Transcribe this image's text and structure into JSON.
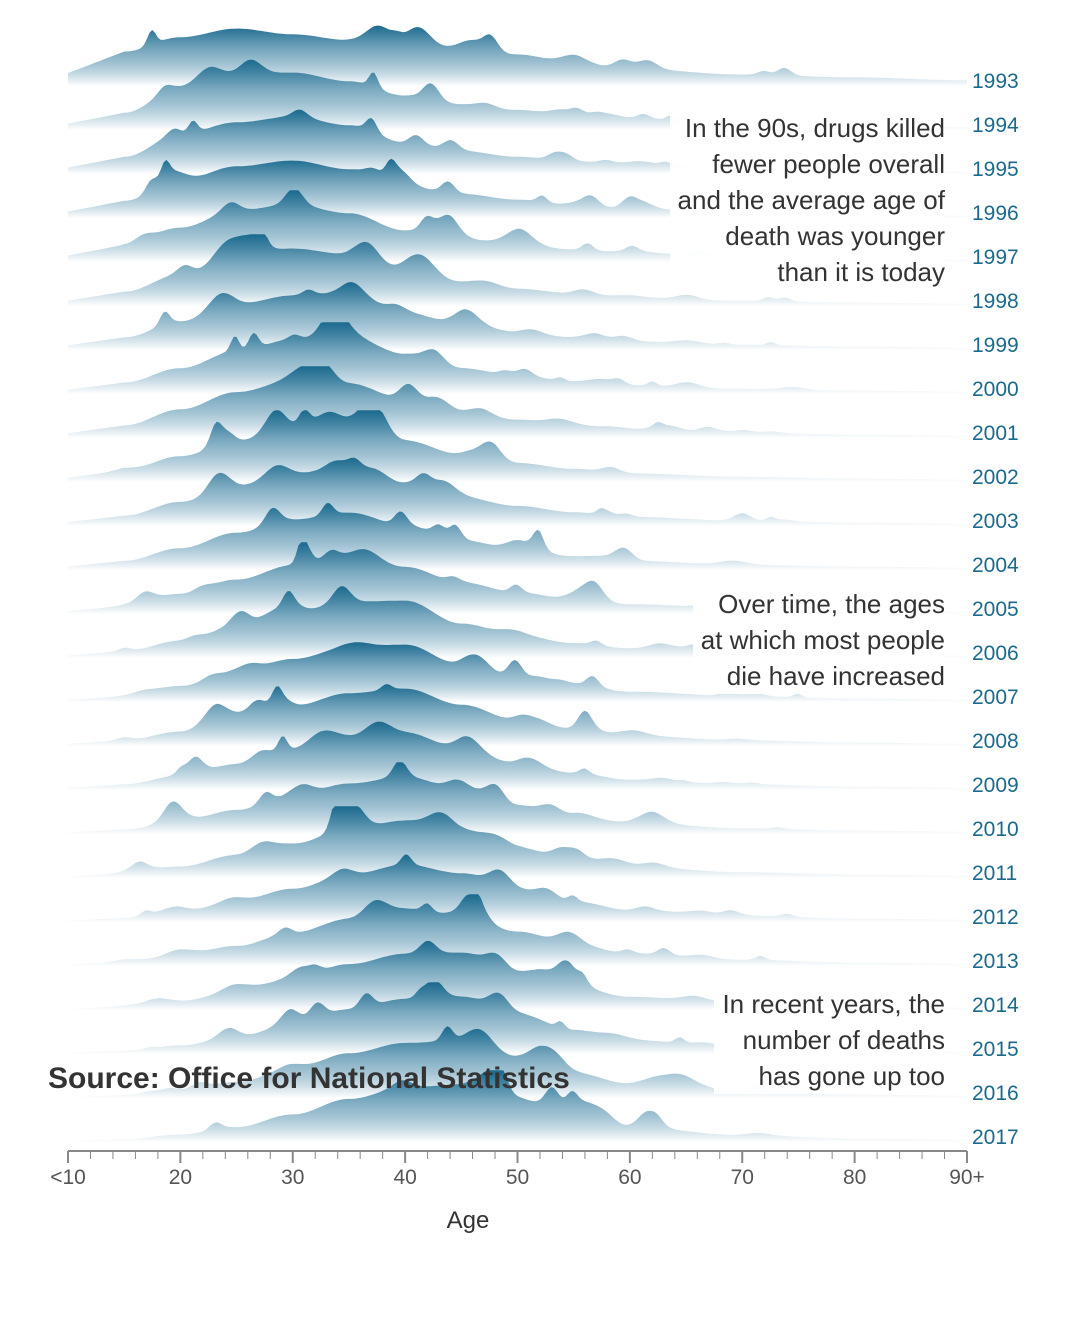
{
  "chart_data": {
    "type": "area",
    "subtype": "ridgeline",
    "xlabel": "Age",
    "x_ticks": [
      "<10",
      "20",
      "30",
      "40",
      "50",
      "60",
      "70",
      "80",
      "90+"
    ],
    "xlim": [
      10,
      90
    ],
    "series": [
      {
        "name": "1993",
        "peak_age": 27,
        "spread": 10,
        "x": [
          15,
          20,
          25,
          30,
          35,
          40,
          45,
          50,
          55,
          60,
          70,
          80,
          90
        ],
        "values": [
          0.6,
          0.85,
          1.0,
          0.9,
          0.8,
          0.72,
          0.65,
          0.55,
          0.4,
          0.3,
          0.2,
          0.15,
          0.1
        ]
      },
      {
        "name": "1994",
        "peak_age": 28,
        "spread": 10,
        "x": [
          15,
          20,
          25,
          30,
          35,
          40,
          45,
          50,
          55,
          60,
          70,
          80,
          90
        ],
        "values": [
          0.3,
          0.75,
          0.95,
          1.0,
          0.85,
          0.6,
          0.45,
          0.35,
          0.25,
          0.2,
          0.12,
          0.08,
          0.05
        ]
      },
      {
        "name": "1995",
        "peak_age": 28,
        "spread": 9,
        "x": [
          15,
          20,
          25,
          30,
          35,
          40,
          45,
          50,
          55,
          60,
          70,
          80,
          90
        ],
        "values": [
          0.3,
          0.7,
          0.9,
          1.0,
          0.85,
          0.55,
          0.4,
          0.3,
          0.22,
          0.18,
          0.1,
          0.07,
          0.04
        ]
      },
      {
        "name": "1996",
        "peak_age": 29,
        "spread": 9,
        "x": [
          15,
          20,
          25,
          30,
          35,
          40,
          45,
          50,
          55,
          60,
          70,
          80,
          90
        ],
        "values": [
          0.3,
          0.65,
          0.9,
          1.0,
          0.85,
          0.55,
          0.42,
          0.32,
          0.22,
          0.16,
          0.1,
          0.06,
          0.04
        ]
      },
      {
        "name": "1997",
        "peak_age": 29,
        "spread": 9,
        "x": [
          15,
          20,
          25,
          30,
          35,
          40,
          45,
          50,
          55,
          60,
          70,
          80,
          90
        ],
        "values": [
          0.3,
          0.6,
          0.9,
          1.0,
          0.85,
          0.55,
          0.4,
          0.3,
          0.22,
          0.16,
          0.1,
          0.06,
          0.04
        ]
      },
      {
        "name": "1998",
        "peak_age": 30,
        "spread": 9,
        "x": [
          15,
          20,
          25,
          30,
          35,
          40,
          45,
          50,
          55,
          60,
          70,
          80,
          90
        ],
        "values": [
          0.25,
          0.55,
          0.85,
          1.0,
          0.9,
          0.6,
          0.42,
          0.3,
          0.22,
          0.15,
          0.09,
          0.06,
          0.04
        ]
      },
      {
        "name": "1999",
        "peak_age": 31,
        "spread": 9,
        "x": [
          15,
          20,
          25,
          30,
          35,
          40,
          45,
          50,
          55,
          60,
          70,
          80,
          90
        ],
        "values": [
          0.22,
          0.5,
          0.8,
          0.95,
          1.0,
          0.65,
          0.45,
          0.32,
          0.22,
          0.15,
          0.09,
          0.06,
          0.04
        ]
      },
      {
        "name": "2000",
        "peak_age": 32,
        "spread": 9,
        "x": [
          15,
          20,
          25,
          30,
          35,
          40,
          45,
          50,
          55,
          60,
          70,
          80,
          90
        ],
        "values": [
          0.2,
          0.45,
          0.75,
          0.95,
          1.0,
          0.7,
          0.45,
          0.32,
          0.22,
          0.15,
          0.09,
          0.06,
          0.04
        ]
      },
      {
        "name": "2001",
        "peak_age": 31,
        "spread": 9,
        "x": [
          15,
          20,
          25,
          30,
          35,
          40,
          45,
          50,
          55,
          60,
          70,
          80,
          90
        ],
        "values": [
          0.22,
          0.5,
          0.8,
          1.0,
          0.95,
          0.68,
          0.45,
          0.32,
          0.22,
          0.15,
          0.09,
          0.06,
          0.04
        ]
      },
      {
        "name": "2002",
        "peak_age": 32,
        "spread": 9,
        "x": [
          15,
          20,
          25,
          30,
          35,
          40,
          45,
          50,
          55,
          60,
          70,
          80,
          90
        ],
        "values": [
          0.2,
          0.45,
          0.72,
          0.95,
          1.0,
          0.72,
          0.48,
          0.33,
          0.23,
          0.15,
          0.09,
          0.06,
          0.04
        ]
      },
      {
        "name": "2003",
        "peak_age": 33,
        "spread": 9,
        "x": [
          15,
          20,
          25,
          30,
          35,
          40,
          45,
          50,
          55,
          60,
          70,
          80,
          90
        ],
        "values": [
          0.18,
          0.42,
          0.7,
          0.92,
          1.0,
          0.75,
          0.5,
          0.35,
          0.24,
          0.16,
          0.09,
          0.06,
          0.04
        ]
      },
      {
        "name": "2004",
        "peak_age": 34,
        "spread": 9,
        "x": [
          15,
          20,
          25,
          30,
          35,
          40,
          45,
          50,
          55,
          60,
          70,
          80,
          90
        ],
        "values": [
          0.16,
          0.38,
          0.65,
          0.88,
          1.0,
          0.78,
          0.52,
          0.36,
          0.24,
          0.16,
          0.09,
          0.06,
          0.04
        ]
      },
      {
        "name": "2005",
        "peak_age": 35,
        "spread": 9,
        "x": [
          15,
          20,
          25,
          30,
          35,
          40,
          45,
          50,
          55,
          60,
          70,
          80,
          90
        ],
        "values": [
          0.14,
          0.35,
          0.6,
          0.85,
          1.0,
          0.82,
          0.55,
          0.38,
          0.25,
          0.17,
          0.1,
          0.06,
          0.04
        ]
      },
      {
        "name": "2006",
        "peak_age": 36,
        "spread": 9,
        "x": [
          15,
          20,
          25,
          30,
          35,
          40,
          45,
          50,
          55,
          60,
          70,
          80,
          90
        ],
        "values": [
          0.12,
          0.3,
          0.55,
          0.8,
          0.98,
          1.0,
          0.6,
          0.4,
          0.26,
          0.17,
          0.1,
          0.06,
          0.04
        ]
      },
      {
        "name": "2007",
        "peak_age": 37,
        "spread": 9,
        "x": [
          15,
          20,
          25,
          30,
          35,
          40,
          45,
          50,
          55,
          60,
          70,
          80,
          90
        ],
        "values": [
          0.1,
          0.28,
          0.5,
          0.75,
          0.95,
          1.0,
          0.65,
          0.42,
          0.28,
          0.18,
          0.1,
          0.06,
          0.04
        ]
      },
      {
        "name": "2008",
        "peak_age": 38,
        "spread": 9,
        "x": [
          15,
          20,
          25,
          30,
          35,
          40,
          45,
          50,
          55,
          60,
          70,
          80,
          90
        ],
        "values": [
          0.1,
          0.25,
          0.45,
          0.7,
          0.92,
          1.0,
          0.72,
          0.45,
          0.3,
          0.18,
          0.1,
          0.06,
          0.04
        ]
      },
      {
        "name": "2009",
        "peak_age": 38,
        "spread": 9,
        "x": [
          15,
          20,
          25,
          30,
          35,
          40,
          45,
          50,
          55,
          60,
          70,
          80,
          90
        ],
        "values": [
          0.1,
          0.25,
          0.45,
          0.7,
          0.92,
          1.0,
          0.72,
          0.46,
          0.3,
          0.18,
          0.1,
          0.06,
          0.04
        ]
      },
      {
        "name": "2010",
        "peak_age": 39,
        "spread": 9,
        "x": [
          15,
          20,
          25,
          30,
          35,
          40,
          45,
          50,
          55,
          60,
          70,
          80,
          90
        ],
        "values": [
          0.08,
          0.22,
          0.42,
          0.65,
          0.88,
          1.0,
          0.78,
          0.5,
          0.32,
          0.2,
          0.1,
          0.06,
          0.04
        ]
      },
      {
        "name": "2011",
        "peak_age": 40,
        "spread": 9,
        "x": [
          15,
          20,
          25,
          30,
          35,
          40,
          45,
          50,
          55,
          60,
          70,
          80,
          90
        ],
        "values": [
          0.08,
          0.2,
          0.4,
          0.6,
          0.85,
          1.0,
          0.82,
          0.52,
          0.34,
          0.2,
          0.1,
          0.06,
          0.04
        ]
      },
      {
        "name": "2012",
        "peak_age": 41,
        "spread": 9,
        "x": [
          15,
          20,
          25,
          30,
          35,
          40,
          45,
          50,
          55,
          60,
          70,
          80,
          90
        ],
        "values": [
          0.07,
          0.18,
          0.36,
          0.58,
          0.82,
          1.0,
          0.85,
          0.56,
          0.36,
          0.21,
          0.11,
          0.06,
          0.04
        ]
      },
      {
        "name": "2013",
        "peak_age": 41,
        "spread": 9,
        "x": [
          15,
          20,
          25,
          30,
          35,
          40,
          45,
          50,
          55,
          60,
          70,
          80,
          90
        ],
        "values": [
          0.07,
          0.18,
          0.35,
          0.58,
          0.82,
          1.0,
          0.88,
          0.6,
          0.38,
          0.22,
          0.11,
          0.06,
          0.04
        ]
      },
      {
        "name": "2014",
        "peak_age": 42,
        "spread": 9,
        "x": [
          15,
          20,
          25,
          30,
          35,
          40,
          45,
          50,
          55,
          60,
          70,
          80,
          90
        ],
        "values": [
          0.06,
          0.16,
          0.32,
          0.55,
          0.8,
          0.98,
          1.0,
          0.65,
          0.4,
          0.23,
          0.11,
          0.06,
          0.04
        ]
      },
      {
        "name": "2015",
        "peak_age": 42,
        "spread": 9,
        "x": [
          15,
          20,
          25,
          30,
          35,
          40,
          45,
          50,
          55,
          60,
          70,
          80,
          90
        ],
        "values": [
          0.06,
          0.15,
          0.3,
          0.52,
          0.78,
          0.96,
          1.0,
          0.7,
          0.42,
          0.24,
          0.12,
          0.06,
          0.04
        ]
      },
      {
        "name": "2016",
        "peak_age": 42,
        "spread": 9,
        "x": [
          15,
          20,
          25,
          30,
          35,
          40,
          45,
          50,
          55,
          60,
          70,
          80,
          90
        ],
        "values": [
          0.05,
          0.14,
          0.28,
          0.5,
          0.78,
          0.96,
          1.0,
          0.72,
          0.44,
          0.25,
          0.12,
          0.06,
          0.04
        ]
      },
      {
        "name": "2017",
        "peak_age": 43,
        "spread": 9,
        "x": [
          15,
          20,
          25,
          30,
          35,
          40,
          45,
          50,
          55,
          60,
          70,
          80,
          90
        ],
        "values": [
          0.05,
          0.13,
          0.26,
          0.48,
          0.75,
          0.95,
          1.0,
          0.75,
          0.46,
          0.26,
          0.12,
          0.06,
          0.04
        ]
      }
    ],
    "grid": false,
    "legend": "none"
  },
  "annotations": [
    {
      "id": "note-90s",
      "lines": [
        "In the 90s, drugs killed",
        "fewer people overall",
        "and the average age of",
        "death was younger",
        "than it is today"
      ]
    },
    {
      "id": "note-time",
      "lines": [
        "Over time, the ages",
        "at which most people",
        "die have increased"
      ]
    },
    {
      "id": "note-recent",
      "lines": [
        "In recent years, the",
        "number of deaths",
        "has gone up too"
      ]
    }
  ],
  "source": "Source: Office for National Statistics",
  "colors": {
    "ridge_dark": "#1b6a8e",
    "ridge_light": "#ffffff",
    "year_label": "#1b6a8e",
    "text": "#333333",
    "axis": "#888888"
  }
}
